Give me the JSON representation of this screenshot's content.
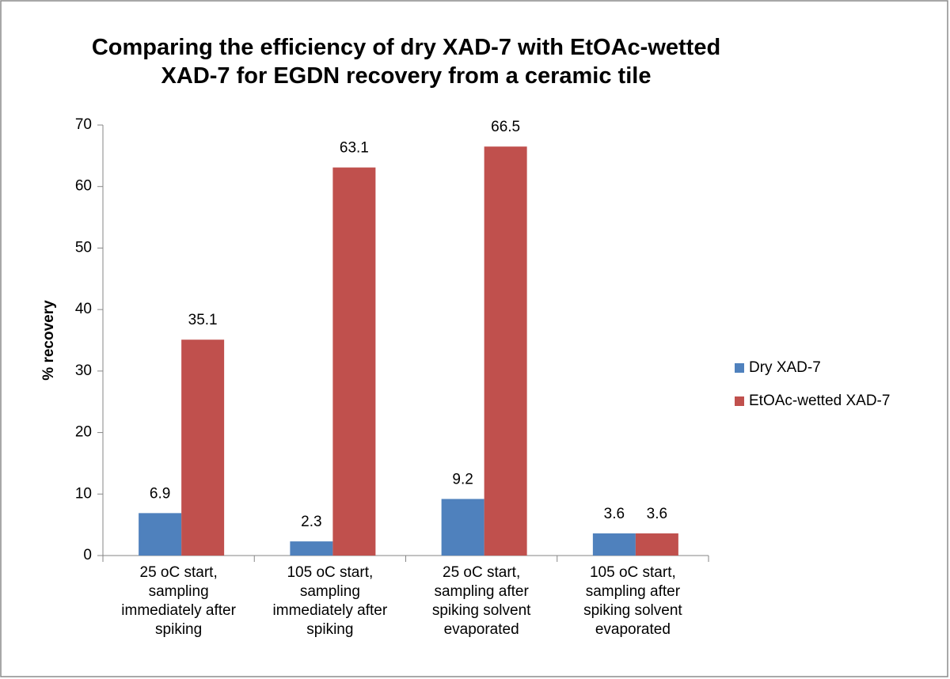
{
  "chart_data": {
    "type": "bar",
    "title": "Comparing the efficiency of dry XAD-7 with EtOAc-wetted XAD-7 for EGDN recovery from a ceramic tile",
    "y_label": "% recovery",
    "categories": [
      "25 oC start, sampling immediately after spiking",
      "105 oC start, sampling immediately after spiking",
      "25 oC start, sampling after spiking solvent evaporated",
      "105 oC start, sampling after spiking solvent evaporated"
    ],
    "series": [
      {
        "name": "Dry XAD-7",
        "color": "#4f81bd",
        "values": [
          6.9,
          2.3,
          9.2,
          3.6
        ]
      },
      {
        "name": "EtOAc-wetted XAD-7",
        "color": "#c0504d",
        "values": [
          35.1,
          63.1,
          66.5,
          3.6
        ]
      }
    ],
    "ylim": [
      0,
      70
    ],
    "yticks": [
      0,
      10,
      20,
      30,
      40,
      50,
      60,
      70
    ],
    "grid": false,
    "legend": "right"
  }
}
